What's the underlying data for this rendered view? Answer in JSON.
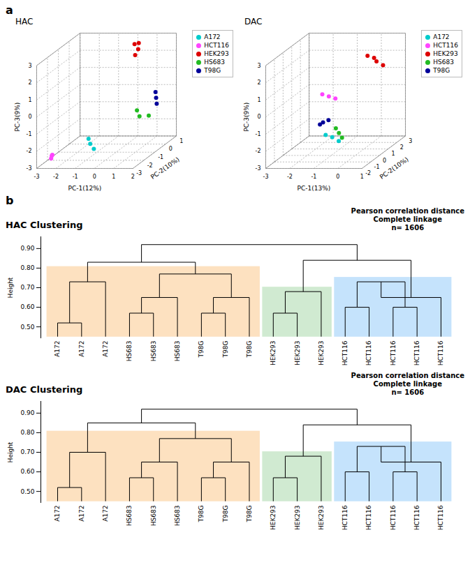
{
  "chart_data": [
    {
      "type": "scatter3d",
      "panel_label": "a",
      "title": "HAC",
      "xlabel": "PC-1(12%)",
      "ylabel": "PC-2(10%)",
      "zlabel": "PC-3(9%)",
      "xlim": [
        -3,
        2
      ],
      "xticks": [
        -3,
        -2,
        -1,
        0,
        1,
        2
      ],
      "ylim": [
        -3,
        1
      ],
      "yticks": [
        -3,
        -2,
        -1,
        0,
        1
      ],
      "zlim": [
        -3,
        3
      ],
      "zticks": [
        -3,
        -2,
        -1,
        0,
        1,
        2,
        3
      ],
      "grid": true,
      "legend": "upper right",
      "series": [
        {
          "name": "A172",
          "color": "#00CCCC",
          "values": [
            [
              -0.5,
              -2.5,
              -1.8
            ],
            [
              -0.2,
              -2.7,
              -2.0
            ],
            [
              -0.7,
              -2.3,
              -1.6
            ]
          ]
        },
        {
          "name": "HCT116",
          "color": "#FF44FF",
          "values": [
            [
              -2.5,
              -2.5,
              -2.5
            ],
            [
              -2.7,
              -2.2,
              -2.8
            ],
            [
              -2.3,
              -2.8,
              -2.3
            ]
          ]
        },
        {
          "name": "HEK293",
          "color": "#DD0000",
          "values": [
            [
              0.2,
              0.4,
              2.0
            ],
            [
              0.0,
              0.7,
              2.5
            ],
            [
              0.5,
              0.2,
              2.8
            ],
            [
              0.3,
              0.5,
              2.3
            ]
          ]
        },
        {
          "name": "HS683",
          "color": "#22BB22",
          "values": [
            [
              0.8,
              -0.5,
              -0.8
            ],
            [
              1.1,
              -0.8,
              -1.0
            ],
            [
              1.3,
              -0.3,
              -1.2
            ]
          ]
        },
        {
          "name": "T98G",
          "color": "#000099",
          "values": [
            [
              1.4,
              0.2,
              -0.4
            ],
            [
              1.2,
              0.5,
              -0.2
            ],
            [
              1.6,
              -0.1,
              -0.6
            ]
          ]
        }
      ]
    },
    {
      "type": "scatter3d",
      "title": "DAC",
      "xlabel": "PC-1(13%)",
      "ylabel": "PC-2(10%)",
      "zlabel": "PC-3(9%)",
      "xlim": [
        -3,
        1
      ],
      "xticks": [
        -3,
        -2,
        -1,
        0,
        1
      ],
      "ylim": [
        -2,
        3
      ],
      "yticks": [
        -2,
        -1,
        0,
        1,
        2,
        3
      ],
      "zlim": [
        -3,
        3
      ],
      "zticks": [
        -3,
        -2,
        -1,
        0,
        1,
        2,
        3
      ],
      "grid": true,
      "legend": "upper right",
      "series": [
        {
          "name": "A172",
          "color": "#00CCCC",
          "values": [
            [
              -1.5,
              1.5,
              -2.5
            ],
            [
              -1.3,
              1.7,
              -2.8
            ],
            [
              -1.7,
              1.3,
              -2.3
            ]
          ]
        },
        {
          "name": "HCT116",
          "color": "#FF44FF",
          "values": [
            [
              -2.0,
              2.5,
              -0.5
            ],
            [
              -2.2,
              2.3,
              -0.3
            ],
            [
              -1.8,
              2.7,
              -0.7
            ]
          ]
        },
        {
          "name": "HEK293",
          "color": "#DD0000",
          "values": [
            [
              0.7,
              0.5,
              2.3
            ],
            [
              0.4,
              0.3,
              2.7
            ],
            [
              0.9,
              0.7,
              2.0
            ],
            [
              0.6,
              0.5,
              2.5
            ]
          ]
        },
        {
          "name": "HS683",
          "color": "#22BB22",
          "values": [
            [
              -0.5,
              -0.5,
              -1.5
            ],
            [
              -0.3,
              -0.7,
              -1.7
            ],
            [
              -0.7,
              -0.3,
              -1.3
            ]
          ]
        },
        {
          "name": "T98G",
          "color": "#000099",
          "values": [
            [
              -0.8,
              -1.5,
              -0.5
            ],
            [
              -0.5,
              -1.7,
              -0.3
            ],
            [
              -1.0,
              -1.3,
              -0.7
            ]
          ]
        }
      ]
    },
    {
      "type": "dendrogram",
      "panel_label": "b",
      "title": "HAC Clustering",
      "annotation": "Pearson correlation distance\nComplete linkage\nn= 1606",
      "ylabel": "Height",
      "ylim": [
        0.44,
        0.96
      ],
      "yticks": [
        0.5,
        0.6,
        0.7,
        0.8,
        0.9
      ],
      "grid": false,
      "leaf_height": 0.45,
      "tree": {
        "height": 0.92,
        "children": [
          {
            "height": 0.83,
            "highlight": {
              "color": "#FDDCB5",
              "ylim": [
                0.448,
                0.808
              ]
            },
            "children": [
              {
                "height": 0.73,
                "children": [
                  {
                    "height": 0.52,
                    "children": [
                      "A172",
                      "A172"
                    ]
                  },
                  "A172"
                ]
              },
              {
                "height": 0.77,
                "children": [
                  {
                    "height": 0.65,
                    "children": [
                      {
                        "height": 0.57,
                        "children": [
                          "HS683",
                          "HS683"
                        ]
                      },
                      "HS683"
                    ]
                  },
                  {
                    "height": 0.65,
                    "children": [
                      {
                        "height": 0.57,
                        "children": [
                          "T98G",
                          "T98G"
                        ]
                      },
                      "T98G"
                    ]
                  }
                ]
              }
            ]
          },
          {
            "height": 0.84,
            "children": [
              {
                "height": 0.68,
                "highlight": {
                  "color": "#C8E6C9",
                  "ylim": [
                    0.448,
                    0.703
                  ]
                },
                "children": [
                  {
                    "height": 0.57,
                    "children": [
                      "HEK293",
                      "HEK293"
                    ]
                  },
                  "HEK293"
                ]
              },
              {
                "height": 0.65,
                "highlight": {
                  "color": "#BBDEFB",
                  "ylim": [
                    0.448,
                    0.753
                  ]
                },
                "children": [
                  {
                    "height": 0.73,
                    "children": [
                      {
                        "height": 0.6,
                        "children": [
                          "HCT116",
                          "HCT116"
                        ]
                      },
                      {
                        "height": 0.6,
                        "children": [
                          "HCT116",
                          "HCT116"
                        ]
                      }
                    ]
                  },
                  "HCT116"
                ]
              }
            ]
          }
        ]
      }
    },
    {
      "type": "dendrogram",
      "title": "DAC Clustering",
      "annotation": "Pearson correlation distance\nComplete linkage\nn= 1606",
      "ylabel": "Height",
      "ylim": [
        0.44,
        0.96
      ],
      "yticks": [
        0.5,
        0.6,
        0.7,
        0.8,
        0.9
      ],
      "grid": false,
      "leaf_height": 0.45,
      "tree": {
        "height": 0.92,
        "children": [
          {
            "height": 0.85,
            "highlight": {
              "color": "#FDDCB5",
              "ylim": [
                0.448,
                0.808
              ]
            },
            "children": [
              {
                "height": 0.7,
                "children": [
                  {
                    "height": 0.52,
                    "children": [
                      "A172",
                      "A172"
                    ]
                  },
                  "A172"
                ]
              },
              {
                "height": 0.77,
                "children": [
                  {
                    "height": 0.65,
                    "children": [
                      {
                        "height": 0.57,
                        "children": [
                          "HS683",
                          "HS683"
                        ]
                      },
                      "HS683"
                    ]
                  },
                  {
                    "height": 0.65,
                    "children": [
                      {
                        "height": 0.57,
                        "children": [
                          "T98G",
                          "T98G"
                        ]
                      },
                      "T98G"
                    ]
                  }
                ]
              }
            ]
          },
          {
            "height": 0.84,
            "children": [
              {
                "height": 0.68,
                "highlight": {
                  "color": "#C8E6C9",
                  "ylim": [
                    0.448,
                    0.703
                  ]
                },
                "children": [
                  {
                    "height": 0.57,
                    "children": [
                      "HEK293",
                      "HEK293"
                    ]
                  },
                  "HEK293"
                ]
              },
              {
                "height": 0.65,
                "highlight": {
                  "color": "#BBDEFB",
                  "ylim": [
                    0.448,
                    0.753
                  ]
                },
                "children": [
                  {
                    "height": 0.73,
                    "children": [
                      {
                        "height": 0.6,
                        "children": [
                          "HCT116",
                          "HCT116"
                        ]
                      },
                      {
                        "height": 0.6,
                        "children": [
                          "HCT116",
                          "HCT116"
                        ]
                      }
                    ]
                  },
                  "HCT116"
                ]
              }
            ]
          }
        ]
      }
    }
  ]
}
